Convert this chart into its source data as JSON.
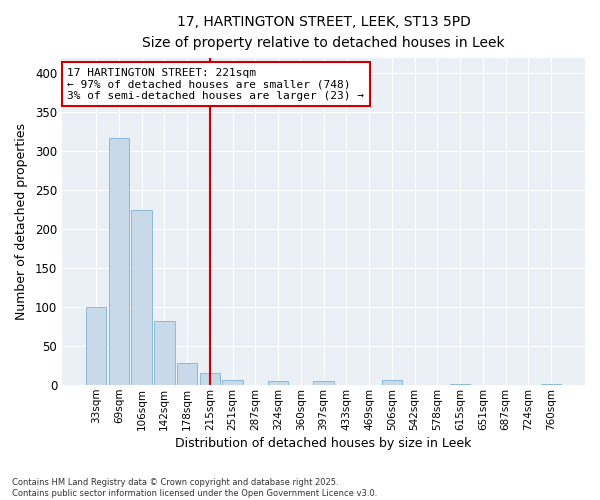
{
  "title_line1": "17, HARTINGTON STREET, LEEK, ST13 5PD",
  "title_line2": "Size of property relative to detached houses in Leek",
  "xlabel": "Distribution of detached houses by size in Leek",
  "ylabel": "Number of detached properties",
  "annotation_title": "17 HARTINGTON STREET: 221sqm",
  "annotation_line2": "← 97% of detached houses are smaller (748)",
  "annotation_line3": "3% of semi-detached houses are larger (23) →",
  "categories": [
    "33sqm",
    "69sqm",
    "106sqm",
    "142sqm",
    "178sqm",
    "215sqm",
    "251sqm",
    "287sqm",
    "324sqm",
    "360sqm",
    "397sqm",
    "433sqm",
    "469sqm",
    "506sqm",
    "542sqm",
    "578sqm",
    "615sqm",
    "651sqm",
    "687sqm",
    "724sqm",
    "760sqm"
  ],
  "bar_heights": [
    100,
    317,
    225,
    82,
    28,
    15,
    6,
    0,
    5,
    0,
    5,
    0,
    0,
    6,
    0,
    0,
    1,
    0,
    0,
    0,
    1
  ],
  "bar_color": "#c8daea",
  "bar_edge_color": "#7fb3d3",
  "vline_index": 5,
  "vline_color": "#cc0000",
  "annotation_box_color": "#cc0000",
  "background_color": "#eaf0f6",
  "ylim": [
    0,
    420
  ],
  "yticks": [
    0,
    50,
    100,
    150,
    200,
    250,
    300,
    350,
    400
  ],
  "footnote_line1": "Contains HM Land Registry data © Crown copyright and database right 2025.",
  "footnote_line2": "Contains public sector information licensed under the Open Government Licence v3.0."
}
